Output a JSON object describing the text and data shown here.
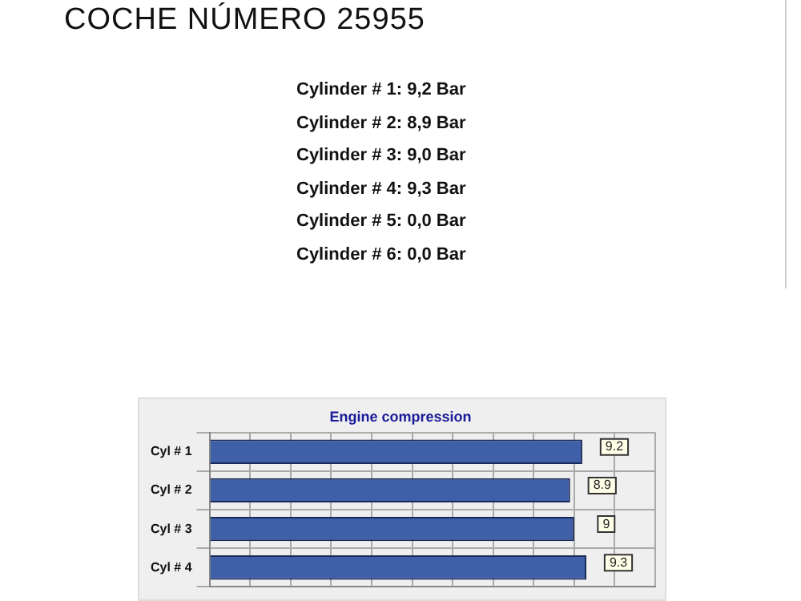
{
  "chart_data": {
    "type": "bar",
    "orientation": "horizontal",
    "title": "Engine compression",
    "annotations": [
      "COCHE NÚMERO 25955",
      "Cylinder # 1:  9,2 Bar",
      "Cylinder # 2:  8,9 Bar",
      "Cylinder # 3:  9,0 Bar",
      "Cylinder # 4:  9,3 Bar",
      "Cylinder # 5:  0,0 Bar",
      "Cylinder # 6:  0,0 Bar"
    ],
    "categories": [
      "Cyl # 1",
      "Cyl # 2",
      "Cyl # 3",
      "Cyl # 4"
    ],
    "values": [
      9.2,
      8.9,
      9,
      9.3
    ],
    "color": "#3f5fa8",
    "xlim": [
      0,
      11
    ],
    "xticks": [
      {
        "value": 0,
        "label": null
      },
      {
        "value": 1,
        "label": null
      },
      {
        "value": 2,
        "label": null
      },
      {
        "value": 3,
        "label": null
      },
      {
        "value": 4,
        "label": null
      },
      {
        "value": 5,
        "label": null
      },
      {
        "value": 6,
        "label": null
      },
      {
        "value": 7,
        "label": null
      },
      {
        "value": 8,
        "label": null
      },
      {
        "value": 9,
        "label": null
      },
      {
        "value": 10,
        "label": null
      },
      {
        "value": 11,
        "label": null
      }
    ],
    "tick_labels": "y",
    "grid": true,
    "data_labels": true,
    "legend": false
  }
}
